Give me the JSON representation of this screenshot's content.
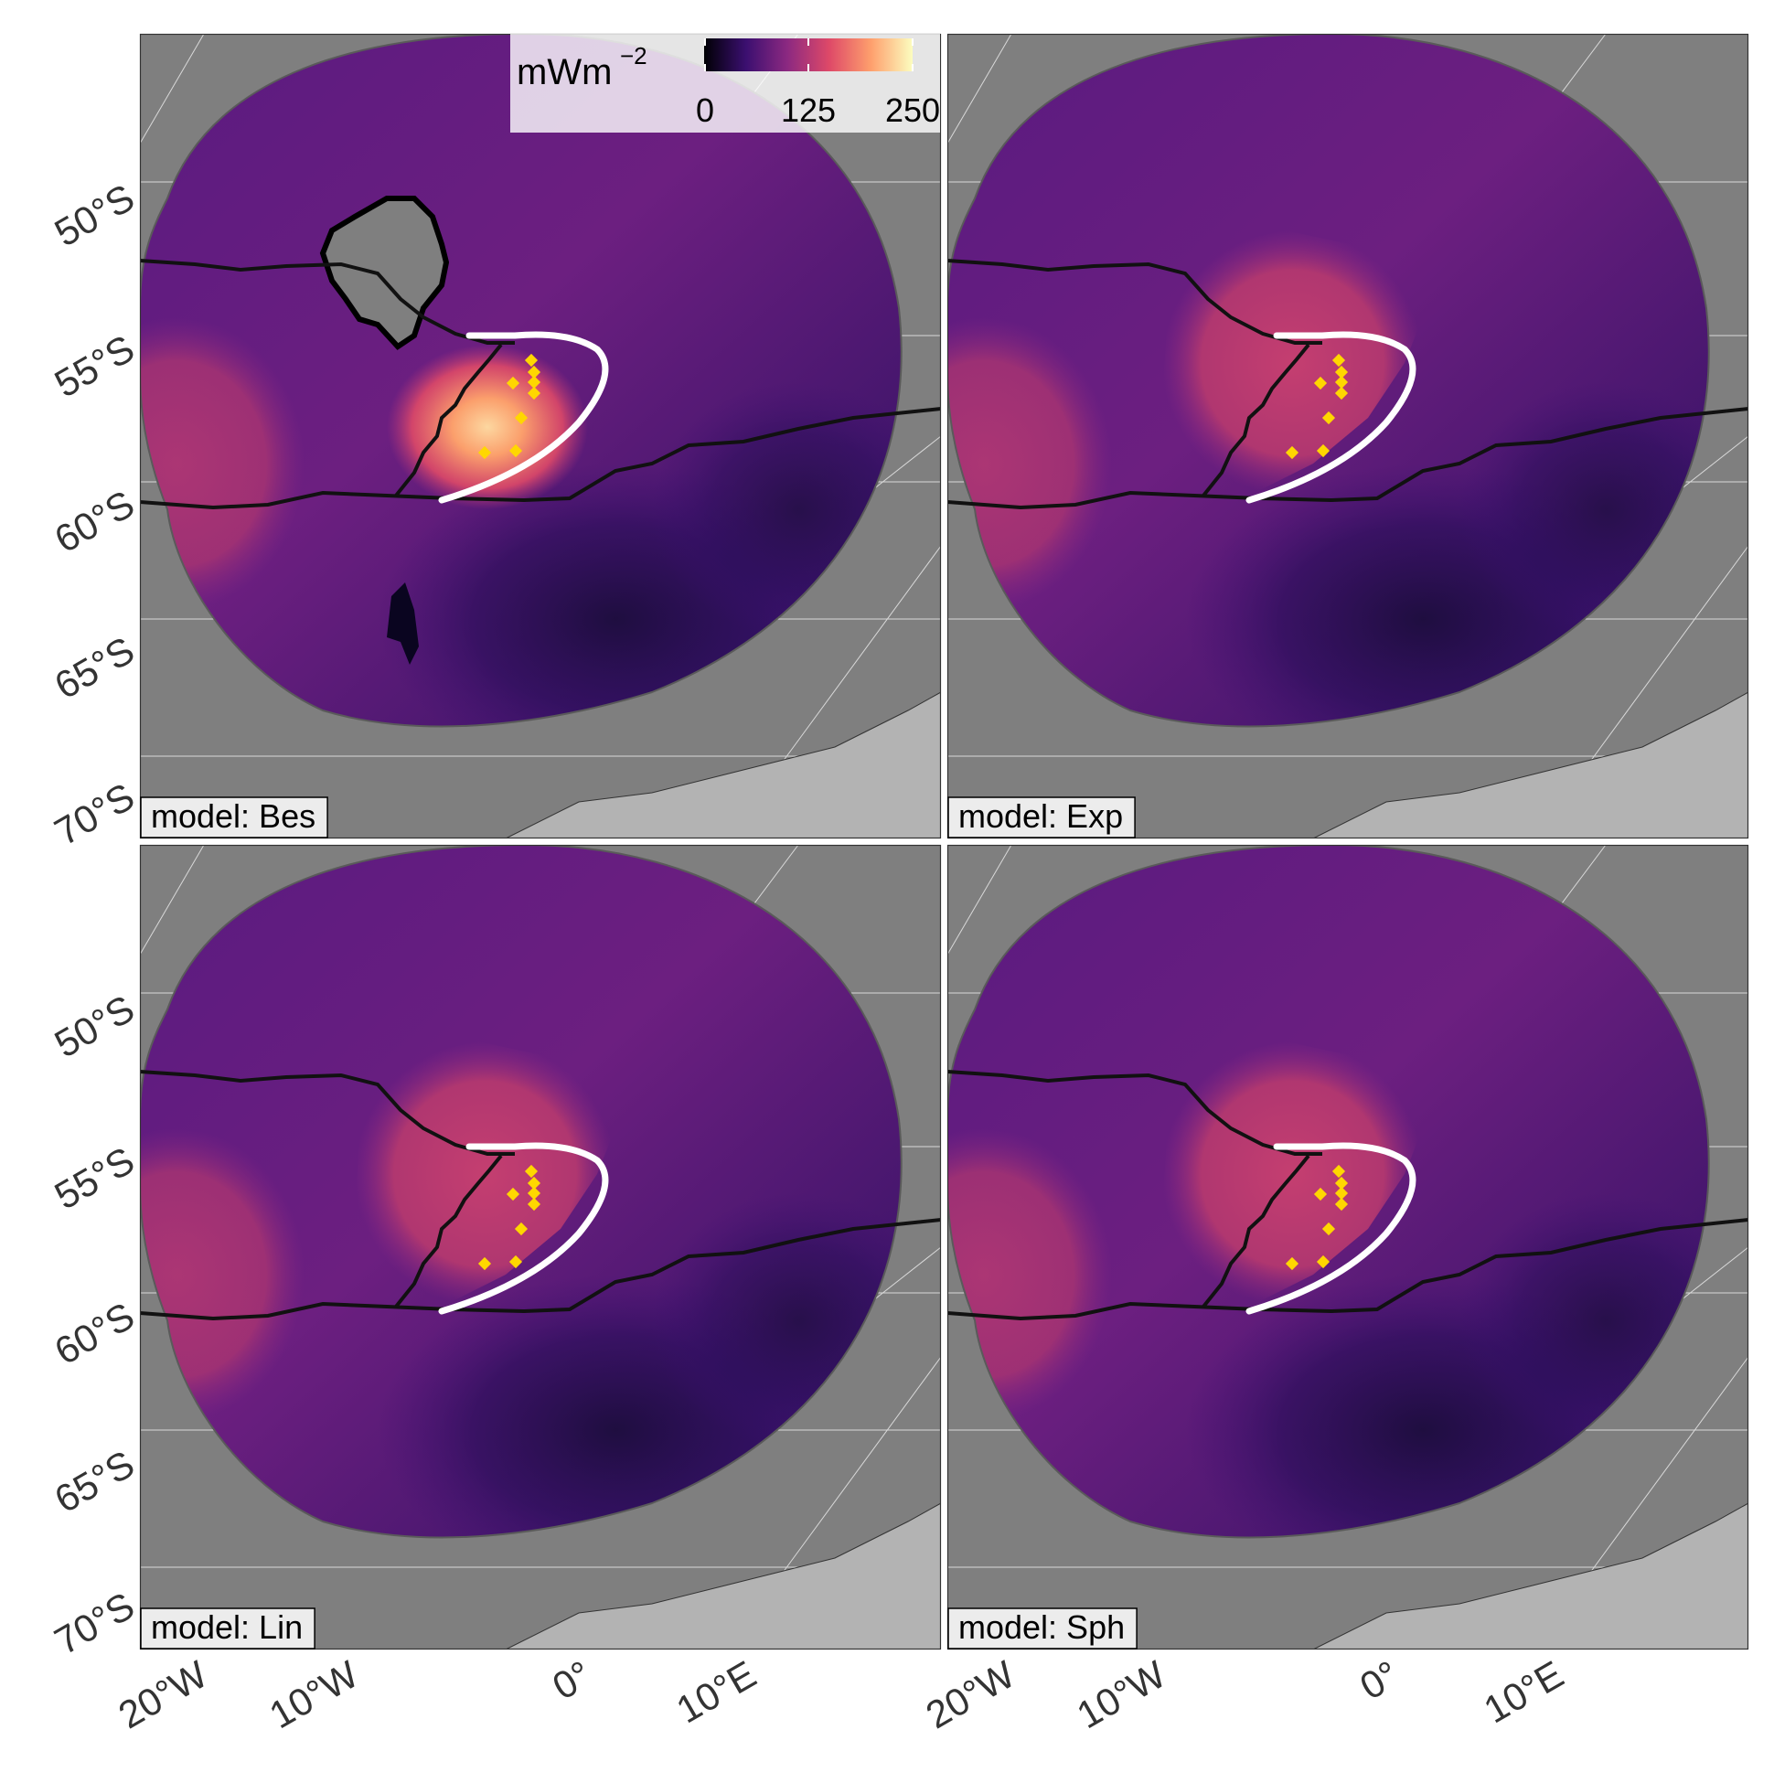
{
  "legend": {
    "unit_base": "mWm",
    "unit_exp": "−2",
    "ticks": [
      "0",
      "125",
      "250"
    ],
    "colors": [
      "#000004",
      "#3b0f70",
      "#8c2981",
      "#de4968",
      "#fe9f6d",
      "#fcfdbf"
    ]
  },
  "axes": {
    "lat_labels": [
      "50°S",
      "55°S",
      "60°S",
      "65°S",
      "70°S"
    ],
    "lon_labels": [
      "20°W",
      "10°W",
      "0°",
      "10°E"
    ]
  },
  "panels": [
    {
      "label": "model: Bes"
    },
    {
      "label": "model: Exp"
    },
    {
      "label": "model: Lin"
    },
    {
      "label": "model: Sph"
    }
  ],
  "colors": {
    "ocean_mask": "#7f7f7f",
    "land": "#b3b3b3",
    "boundary": "#111111",
    "arc": "#ffffff",
    "points": "#ffd700",
    "label_box": "#ececec"
  }
}
